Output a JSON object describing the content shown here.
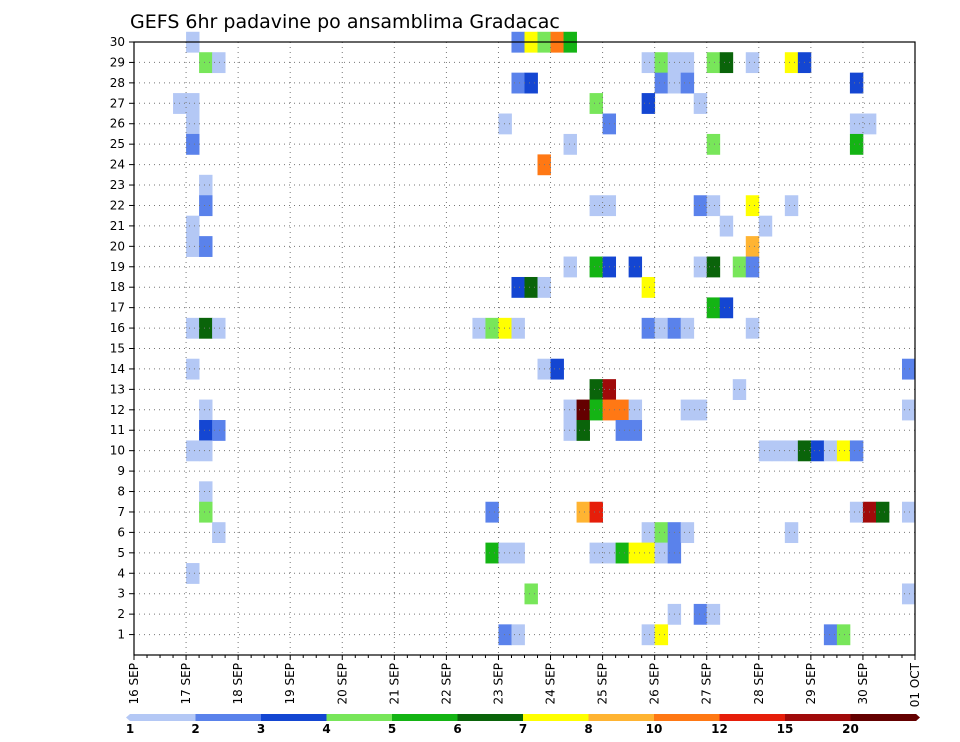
{
  "chart_data": {
    "type": "heatmap",
    "title": "GEFS 6hr padavine po ansamblima Gradacac",
    "xlabel": "",
    "ylabel": "",
    "x_tick_labels": [
      "16 SEP",
      "17 SEP",
      "18 SEP",
      "19 SEP",
      "20 SEP",
      "21 SEP",
      "22 SEP",
      "23 SEP",
      "24 SEP",
      "25 SEP",
      "26 SEP",
      "27 SEP",
      "28 SEP",
      "29 SEP",
      "30 SEP",
      "01 OCT"
    ],
    "x_range_days": [
      0,
      15
    ],
    "y_tick_labels": [
      1,
      2,
      3,
      4,
      5,
      6,
      7,
      8,
      9,
      10,
      11,
      12,
      13,
      14,
      15,
      16,
      17,
      18,
      19,
      20,
      21,
      22,
      23,
      24,
      25,
      26,
      27,
      28,
      29,
      30
    ],
    "y_range": [
      0,
      30
    ],
    "grid": true,
    "colorbar": {
      "position": "bottom",
      "labels": [
        "1",
        "2",
        "3",
        "4",
        "5",
        "6",
        "7",
        "8",
        "10",
        "12",
        "15",
        "20"
      ],
      "colors": [
        "#b4c8f5",
        "#5a82eb",
        "#1446d2",
        "#78e65a",
        "#14b414",
        "#0a640a",
        "#ffff00",
        "#ffb432",
        "#ff7814",
        "#e61e0a",
        "#a00a0a",
        "#640000"
      ]
    },
    "cells": [
      [
        1.0,
        1,
        30
      ],
      [
        1.25,
        4,
        29
      ],
      [
        1.5,
        1,
        29
      ],
      [
        7.25,
        2,
        30
      ],
      [
        7.5,
        7,
        30
      ],
      [
        7.75,
        4,
        30
      ],
      [
        8.0,
        9,
        30
      ],
      [
        8.25,
        5,
        30
      ],
      [
        9.75,
        1,
        29
      ],
      [
        10.0,
        4,
        29
      ],
      [
        10.25,
        1,
        29
      ],
      [
        10.5,
        1,
        29
      ],
      [
        11.0,
        4,
        29
      ],
      [
        11.25,
        6,
        29
      ],
      [
        11.75,
        1,
        29
      ],
      [
        12.5,
        7,
        29
      ],
      [
        12.75,
        3,
        29
      ],
      [
        7.25,
        2,
        28
      ],
      [
        7.5,
        3,
        28
      ],
      [
        10.0,
        2,
        28
      ],
      [
        10.25,
        1,
        28
      ],
      [
        10.5,
        2,
        28
      ],
      [
        13.75,
        3,
        28
      ],
      [
        0.75,
        1,
        27
      ],
      [
        1.0,
        1,
        27
      ],
      [
        8.75,
        4,
        27
      ],
      [
        9.75,
        3,
        27
      ],
      [
        10.75,
        1,
        27
      ],
      [
        1.0,
        1,
        26
      ],
      [
        7.0,
        1,
        26
      ],
      [
        9.0,
        2,
        26
      ],
      [
        13.75,
        1,
        26
      ],
      [
        14.0,
        1,
        26
      ],
      [
        1.0,
        2,
        25
      ],
      [
        8.25,
        1,
        25
      ],
      [
        11.0,
        4,
        25
      ],
      [
        13.75,
        5,
        25
      ],
      [
        7.75,
        9,
        24
      ],
      [
        1.25,
        1,
        23
      ],
      [
        1.25,
        2,
        22
      ],
      [
        8.75,
        1,
        22
      ],
      [
        9.0,
        1,
        22
      ],
      [
        10.75,
        2,
        22
      ],
      [
        11.0,
        1,
        22
      ],
      [
        11.75,
        7,
        22
      ],
      [
        12.5,
        1,
        22
      ],
      [
        1.0,
        1,
        21
      ],
      [
        11.25,
        1,
        21
      ],
      [
        12.0,
        1,
        21
      ],
      [
        1.0,
        1,
        20
      ],
      [
        1.25,
        2,
        20
      ],
      [
        11.75,
        8,
        20
      ],
      [
        8.25,
        1,
        19
      ],
      [
        8.75,
        5,
        19
      ],
      [
        9.0,
        3,
        19
      ],
      [
        9.5,
        3,
        19
      ],
      [
        10.75,
        1,
        19
      ],
      [
        11.0,
        6,
        19
      ],
      [
        11.5,
        4,
        19
      ],
      [
        11.75,
        2,
        19
      ],
      [
        7.25,
        3,
        18
      ],
      [
        7.5,
        6,
        18
      ],
      [
        7.75,
        1,
        18
      ],
      [
        9.75,
        7,
        18
      ],
      [
        11.0,
        5,
        17
      ],
      [
        11.25,
        3,
        17
      ],
      [
        1.0,
        1,
        16
      ],
      [
        1.25,
        6,
        16
      ],
      [
        1.5,
        1,
        16
      ],
      [
        6.5,
        1,
        16
      ],
      [
        6.75,
        4,
        16
      ],
      [
        7.0,
        7,
        16
      ],
      [
        7.25,
        1,
        16
      ],
      [
        9.75,
        2,
        16
      ],
      [
        10.0,
        1,
        16
      ],
      [
        10.25,
        2,
        16
      ],
      [
        10.5,
        1,
        16
      ],
      [
        11.75,
        1,
        16
      ],
      [
        1.0,
        1,
        14
      ],
      [
        7.75,
        1,
        14
      ],
      [
        8.0,
        3,
        14
      ],
      [
        14.75,
        2,
        14
      ],
      [
        11.5,
        1,
        13
      ],
      [
        8.75,
        6,
        13
      ],
      [
        9.0,
        11,
        13
      ],
      [
        1.25,
        1,
        12
      ],
      [
        8.25,
        1,
        12
      ],
      [
        8.5,
        12,
        12
      ],
      [
        8.75,
        5,
        12
      ],
      [
        9.0,
        9,
        12
      ],
      [
        9.25,
        9,
        12
      ],
      [
        9.5,
        1,
        12
      ],
      [
        10.5,
        1,
        12
      ],
      [
        10.75,
        1,
        12
      ],
      [
        14.75,
        1,
        12
      ],
      [
        1.25,
        3,
        11
      ],
      [
        1.5,
        2,
        11
      ],
      [
        8.25,
        1,
        11
      ],
      [
        8.5,
        6,
        11
      ],
      [
        9.25,
        2,
        11
      ],
      [
        9.5,
        2,
        11
      ],
      [
        1.0,
        1,
        10
      ],
      [
        1.25,
        1,
        10
      ],
      [
        12.0,
        1,
        10
      ],
      [
        12.25,
        1,
        10
      ],
      [
        12.5,
        1,
        10
      ],
      [
        12.75,
        6,
        10
      ],
      [
        13.0,
        3,
        10
      ],
      [
        13.25,
        1,
        10
      ],
      [
        13.5,
        7,
        10
      ],
      [
        13.75,
        2,
        10
      ],
      [
        1.25,
        1,
        8
      ],
      [
        1.25,
        4,
        7
      ],
      [
        6.75,
        2,
        7
      ],
      [
        8.5,
        8,
        7
      ],
      [
        8.75,
        10,
        7
      ],
      [
        13.75,
        1,
        7
      ],
      [
        14.0,
        11,
        7
      ],
      [
        14.25,
        6,
        7
      ],
      [
        14.75,
        1,
        7
      ],
      [
        1.5,
        1,
        6
      ],
      [
        9.75,
        1,
        6
      ],
      [
        10.0,
        4,
        6
      ],
      [
        10.25,
        2,
        6
      ],
      [
        10.5,
        1,
        6
      ],
      [
        12.5,
        1,
        6
      ],
      [
        6.75,
        5,
        5
      ],
      [
        7.0,
        1,
        5
      ],
      [
        7.25,
        1,
        5
      ],
      [
        8.75,
        1,
        5
      ],
      [
        9.0,
        1,
        5
      ],
      [
        9.25,
        5,
        5
      ],
      [
        9.5,
        7,
        5
      ],
      [
        9.75,
        7,
        5
      ],
      [
        10.0,
        1,
        5
      ],
      [
        10.25,
        2,
        5
      ],
      [
        1.0,
        1,
        4
      ],
      [
        7.5,
        4,
        3
      ],
      [
        14.75,
        1,
        3
      ],
      [
        10.25,
        1,
        2
      ],
      [
        10.75,
        2,
        2
      ],
      [
        11.0,
        1,
        2
      ],
      [
        7.0,
        2,
        1
      ],
      [
        7.25,
        1,
        1
      ],
      [
        9.75,
        1,
        1
      ],
      [
        10.0,
        7,
        1
      ],
      [
        13.25,
        2,
        1
      ],
      [
        13.5,
        4,
        1
      ]
    ]
  }
}
